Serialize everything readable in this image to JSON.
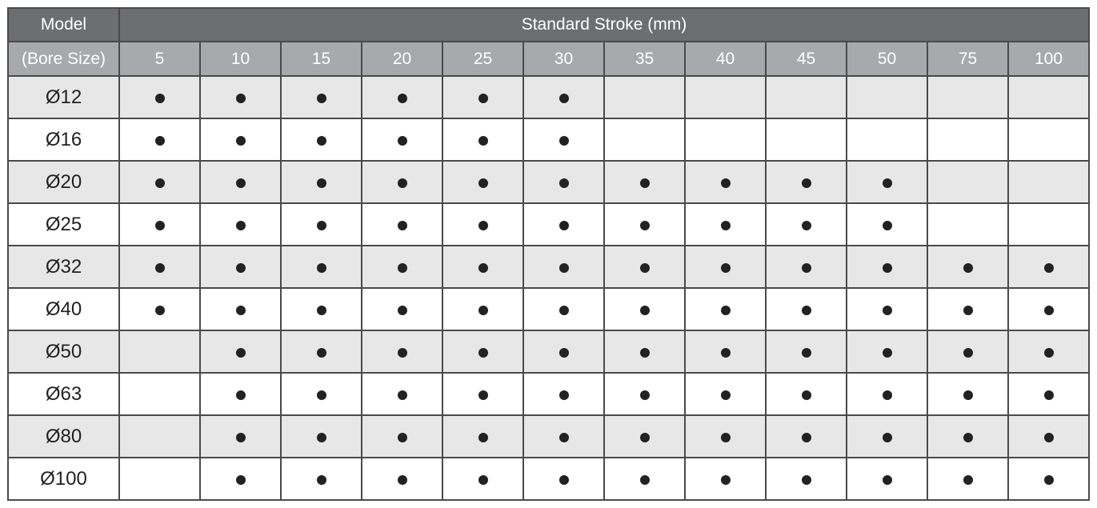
{
  "header": {
    "model_label": "Model",
    "bore_label": "(Bore Size)",
    "stroke_label": "Standard Stroke (mm)",
    "strokes": [
      "5",
      "10",
      "15",
      "20",
      "25",
      "30",
      "35",
      "40",
      "45",
      "50",
      "75",
      "100"
    ]
  },
  "rows": [
    {
      "bore": "Ø12",
      "available": [
        1,
        1,
        1,
        1,
        1,
        1,
        0,
        0,
        0,
        0,
        0,
        0
      ]
    },
    {
      "bore": "Ø16",
      "available": [
        1,
        1,
        1,
        1,
        1,
        1,
        0,
        0,
        0,
        0,
        0,
        0
      ]
    },
    {
      "bore": "Ø20",
      "available": [
        1,
        1,
        1,
        1,
        1,
        1,
        1,
        1,
        1,
        1,
        0,
        0
      ]
    },
    {
      "bore": "Ø25",
      "available": [
        1,
        1,
        1,
        1,
        1,
        1,
        1,
        1,
        1,
        1,
        0,
        0
      ]
    },
    {
      "bore": "Ø32",
      "available": [
        1,
        1,
        1,
        1,
        1,
        1,
        1,
        1,
        1,
        1,
        1,
        1
      ]
    },
    {
      "bore": "Ø40",
      "available": [
        1,
        1,
        1,
        1,
        1,
        1,
        1,
        1,
        1,
        1,
        1,
        1
      ]
    },
    {
      "bore": "Ø50",
      "available": [
        0,
        1,
        1,
        1,
        1,
        1,
        1,
        1,
        1,
        1,
        1,
        1
      ]
    },
    {
      "bore": "Ø63",
      "available": [
        0,
        1,
        1,
        1,
        1,
        1,
        1,
        1,
        1,
        1,
        1,
        1
      ]
    },
    {
      "bore": "Ø80",
      "available": [
        0,
        1,
        1,
        1,
        1,
        1,
        1,
        1,
        1,
        1,
        1,
        1
      ]
    },
    {
      "bore": "Ø100",
      "available": [
        0,
        1,
        1,
        1,
        1,
        1,
        1,
        1,
        1,
        1,
        1,
        1
      ]
    }
  ],
  "colors": {
    "header_dark": "#6d6e71",
    "header_light": "#a7a9ac",
    "row_shade": "#e7e7e7",
    "dot": "#222222"
  }
}
